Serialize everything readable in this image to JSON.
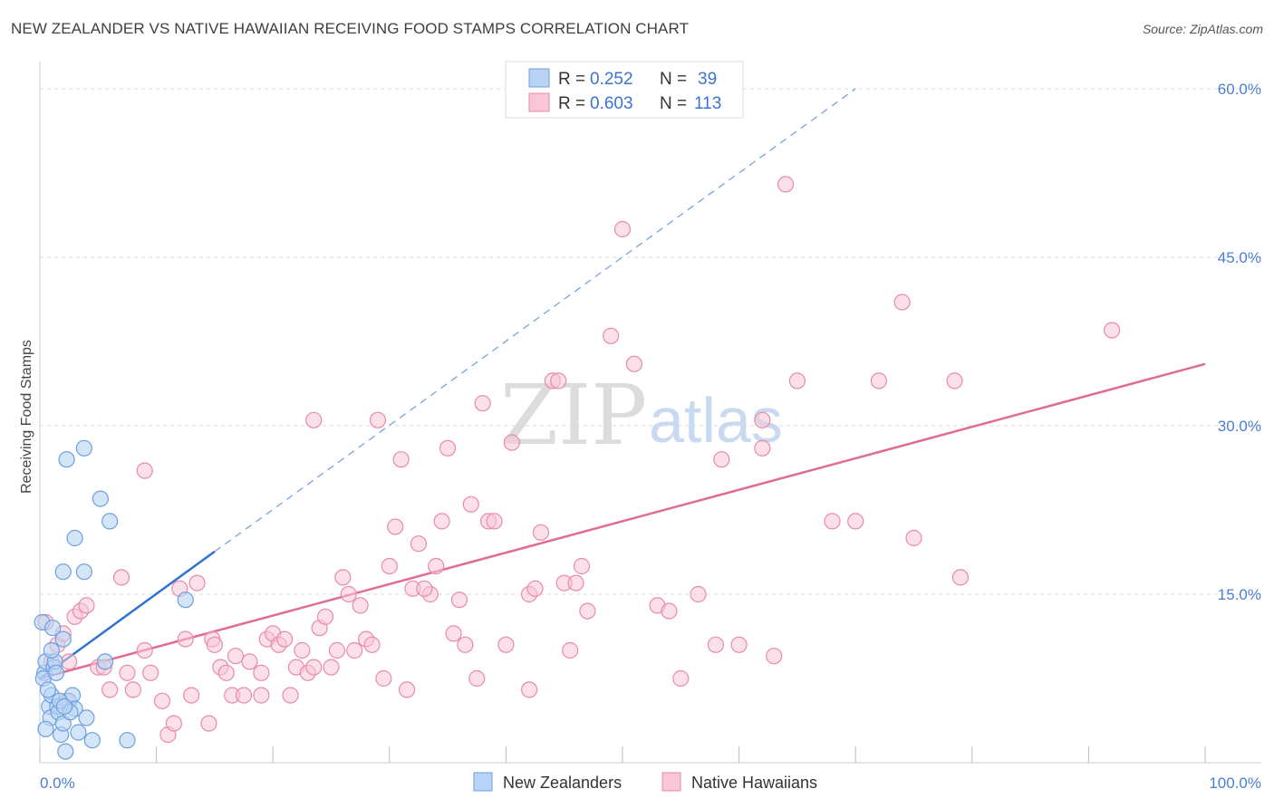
{
  "header": {
    "title": "NEW ZEALANDER VS NATIVE HAWAIIAN RECEIVING FOOD STAMPS CORRELATION CHART",
    "source": "Source: ZipAtlas.com"
  },
  "watermark": {
    "zip": "ZIP",
    "atlas": "atlas"
  },
  "legend": {
    "rows": [
      {
        "r_label": "R =",
        "r_value": "0.252",
        "n_label": "N =",
        "n_value": "39"
      },
      {
        "r_label": "R =",
        "r_value": "0.603",
        "n_label": "N =",
        "n_value": "113"
      }
    ]
  },
  "bottom_legend": [
    "New Zealanders",
    "Native Hawaiians"
  ],
  "chart_data": {
    "type": "scatter",
    "title": "NEW ZEALANDER VS NATIVE HAWAIIAN RECEIVING FOOD STAMPS CORRELATION CHART",
    "xlabel": "",
    "ylabel": "Receiving Food Stamps",
    "xlim": [
      0,
      100
    ],
    "ylim": [
      0,
      60
    ],
    "x_tick_labels": [
      "0.0%",
      "100.0%"
    ],
    "y_ticks": [
      15,
      30,
      45,
      60
    ],
    "y_tick_labels": [
      "15.0%",
      "30.0%",
      "45.0%",
      "60.0%"
    ],
    "grid": true,
    "colors": {
      "nz_fill": "#b9d3f4",
      "nz_stroke": "#6c9fe0",
      "nz_line": "#2f72d0",
      "nh_fill": "#f8c6d6",
      "nh_stroke": "#e88aab",
      "nh_line": "#e06b96",
      "accent": "#4a7fd0"
    },
    "series": [
      {
        "name": "New Zealanders",
        "r": 0.252,
        "n": 39,
        "trend": {
          "x": [
            0,
            15
          ],
          "y": [
            7.5,
            18.8
          ],
          "extended_x": [
            15,
            70
          ],
          "extended_y": [
            18.8,
            60
          ]
        },
        "points": [
          [
            0.2,
            12.5
          ],
          [
            0.4,
            8.0
          ],
          [
            0.5,
            9.0
          ],
          [
            0.3,
            7.5
          ],
          [
            0.8,
            5.0
          ],
          [
            0.9,
            4.0
          ],
          [
            1.0,
            6.0
          ],
          [
            1.2,
            8.5
          ],
          [
            1.3,
            9.0
          ],
          [
            1.5,
            5.0
          ],
          [
            1.6,
            4.5
          ],
          [
            1.8,
            2.5
          ],
          [
            2.0,
            3.5
          ],
          [
            2.2,
            1.0
          ],
          [
            2.5,
            5.5
          ],
          [
            2.8,
            6.0
          ],
          [
            3.0,
            4.8
          ],
          [
            2.0,
            11.0
          ],
          [
            2.0,
            17.0
          ],
          [
            2.3,
            27.0
          ],
          [
            3.0,
            20.0
          ],
          [
            3.3,
            2.7
          ],
          [
            3.8,
            17.0
          ],
          [
            4.0,
            4.0
          ],
          [
            4.5,
            2.0
          ],
          [
            3.8,
            28.0
          ],
          [
            5.2,
            23.5
          ],
          [
            5.6,
            9.0
          ],
          [
            6.0,
            21.5
          ],
          [
            7.5,
            2.0
          ],
          [
            12.5,
            14.5
          ],
          [
            1.0,
            10.0
          ],
          [
            0.5,
            3.0
          ],
          [
            1.7,
            5.5
          ],
          [
            2.6,
            4.5
          ],
          [
            1.1,
            12.0
          ],
          [
            0.7,
            6.5
          ],
          [
            1.4,
            8.0
          ],
          [
            2.1,
            5.0
          ]
        ]
      },
      {
        "name": "Native Hawaiians",
        "r": 0.603,
        "n": 113,
        "trend": {
          "x": [
            0,
            100
          ],
          "y": [
            7.5,
            35.5
          ]
        },
        "points": [
          [
            0.5,
            12.5
          ],
          [
            1.0,
            9.0
          ],
          [
            1.5,
            10.5
          ],
          [
            2.0,
            11.5
          ],
          [
            2.3,
            5.5
          ],
          [
            2.5,
            9.0
          ],
          [
            3.0,
            13.0
          ],
          [
            3.5,
            13.5
          ],
          [
            4.0,
            14.0
          ],
          [
            5.0,
            8.5
          ],
          [
            5.5,
            8.5
          ],
          [
            6.0,
            6.5
          ],
          [
            7.0,
            16.5
          ],
          [
            7.5,
            8.0
          ],
          [
            8.0,
            6.5
          ],
          [
            9.0,
            10.0
          ],
          [
            9.0,
            26.0
          ],
          [
            9.5,
            8.0
          ],
          [
            10.5,
            5.5
          ],
          [
            11.0,
            2.5
          ],
          [
            11.5,
            3.5
          ],
          [
            12.0,
            15.5
          ],
          [
            12.5,
            11.0
          ],
          [
            13.0,
            6.0
          ],
          [
            13.5,
            16.0
          ],
          [
            14.5,
            3.5
          ],
          [
            14.8,
            11.0
          ],
          [
            15.0,
            10.5
          ],
          [
            15.5,
            8.5
          ],
          [
            16.0,
            8.0
          ],
          [
            16.5,
            6.0
          ],
          [
            16.8,
            9.5
          ],
          [
            17.5,
            6.0
          ],
          [
            18.0,
            9.0
          ],
          [
            19.0,
            8.0
          ],
          [
            19.0,
            6.0
          ],
          [
            19.5,
            11.0
          ],
          [
            20.0,
            11.5
          ],
          [
            20.5,
            10.5
          ],
          [
            21.0,
            11.0
          ],
          [
            21.5,
            6.0
          ],
          [
            22.0,
            8.5
          ],
          [
            22.5,
            10.0
          ],
          [
            23.0,
            8.0
          ],
          [
            23.5,
            8.5
          ],
          [
            24.0,
            12.0
          ],
          [
            24.5,
            13.0
          ],
          [
            25.0,
            8.5
          ],
          [
            23.5,
            30.5
          ],
          [
            25.5,
            10.0
          ],
          [
            26.0,
            16.5
          ],
          [
            26.5,
            15.0
          ],
          [
            27.5,
            14.0
          ],
          [
            27.0,
            10.0
          ],
          [
            28.0,
            11.0
          ],
          [
            28.5,
            10.5
          ],
          [
            29.0,
            30.5
          ],
          [
            29.5,
            7.5
          ],
          [
            30.0,
            17.5
          ],
          [
            30.5,
            21.0
          ],
          [
            31.0,
            27.0
          ],
          [
            31.5,
            6.5
          ],
          [
            32.0,
            15.5
          ],
          [
            32.5,
            19.5
          ],
          [
            33.5,
            15.0
          ],
          [
            34.0,
            17.5
          ],
          [
            34.5,
            21.5
          ],
          [
            35.0,
            28.0
          ],
          [
            36.0,
            14.5
          ],
          [
            36.5,
            10.5
          ],
          [
            37.0,
            23.0
          ],
          [
            37.5,
            7.5
          ],
          [
            38.0,
            32.0
          ],
          [
            38.5,
            21.5
          ],
          [
            39.0,
            21.5
          ],
          [
            40.0,
            10.5
          ],
          [
            40.5,
            28.5
          ],
          [
            42.0,
            15.0
          ],
          [
            42.5,
            15.5
          ],
          [
            42.0,
            6.5
          ],
          [
            43.0,
            20.5
          ],
          [
            44.0,
            34.0
          ],
          [
            44.5,
            34.0
          ],
          [
            45.0,
            16.0
          ],
          [
            46.0,
            16.0
          ],
          [
            46.5,
            17.5
          ],
          [
            47.0,
            13.5
          ],
          [
            50.0,
            47.5
          ],
          [
            49.0,
            38.0
          ],
          [
            51.0,
            35.5
          ],
          [
            53.0,
            14.0
          ],
          [
            54.0,
            13.5
          ],
          [
            55.0,
            7.5
          ],
          [
            56.5,
            15.0
          ],
          [
            58.0,
            10.5
          ],
          [
            58.5,
            27.0
          ],
          [
            60.0,
            10.5
          ],
          [
            62.0,
            28.0
          ],
          [
            62.0,
            30.5
          ],
          [
            63.0,
            9.5
          ],
          [
            64.0,
            51.5
          ],
          [
            65.0,
            34.0
          ],
          [
            68.0,
            21.5
          ],
          [
            70.0,
            21.5
          ],
          [
            72.0,
            34.0
          ],
          [
            74.0,
            41.0
          ],
          [
            75.0,
            20.0
          ],
          [
            78.5,
            34.0
          ],
          [
            79.0,
            16.5
          ],
          [
            92.0,
            38.5
          ],
          [
            33.0,
            15.5
          ],
          [
            35.5,
            11.5
          ],
          [
            45.5,
            10.0
          ]
        ]
      }
    ]
  }
}
